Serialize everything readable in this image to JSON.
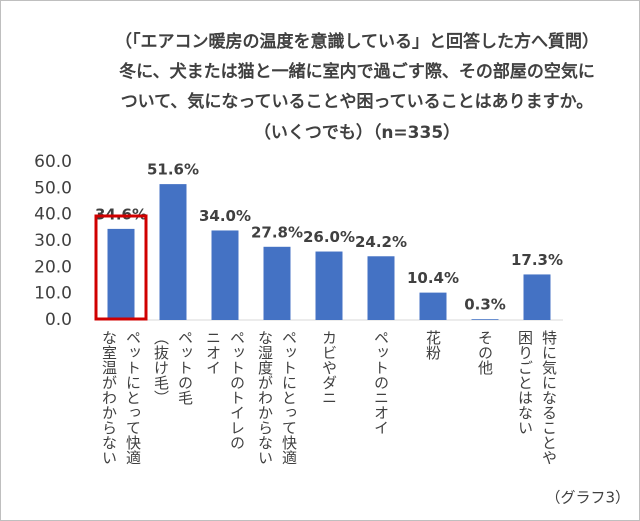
{
  "chart_data": {
    "type": "bar",
    "title": [
      "（「エアコン暖房の温度を意識している」と回答した方へ質問）",
      "冬に、犬または猫と一緒に室内で過ごす際、その部屋の空気に",
      "ついて、気になっていることや困っていることはありますか。",
      "（いくつでも）（n=335）"
    ],
    "categories": [
      "ペットにとって快適\nな室温がわからない",
      "ペットの毛\n（抜け毛）",
      "ペットのトイレの\nニオイ",
      "ペットにとって快適\nな湿度がわからない",
      "カビやダニ",
      "ペットのニオイ",
      "花粉",
      "その他",
      "特に気になることや\n困りごとはない"
    ],
    "values": [
      34.6,
      51.6,
      34.0,
      27.8,
      26.0,
      24.2,
      10.4,
      0.3,
      17.3
    ],
    "value_labels": [
      "34.6%",
      "51.6%",
      "34.0%",
      "27.8%",
      "26.0%",
      "24.2%",
      "10.4%",
      "0.3%",
      "17.3%"
    ],
    "color": "#4472c4",
    "highlight_color": "#d00000",
    "ylim": [
      0,
      60
    ],
    "yticks": [
      {
        "value": 0,
        "label": "0.0"
      },
      {
        "value": 10,
        "label": "10.0"
      },
      {
        "value": 20,
        "label": "20.0"
      },
      {
        "value": 30,
        "label": "30.0"
      },
      {
        "value": 40,
        "label": "40.0"
      },
      {
        "value": 50,
        "label": "50.0"
      },
      {
        "value": 60,
        "label": "60.0"
      }
    ],
    "grid": false,
    "note": "（グラフ3）"
  }
}
